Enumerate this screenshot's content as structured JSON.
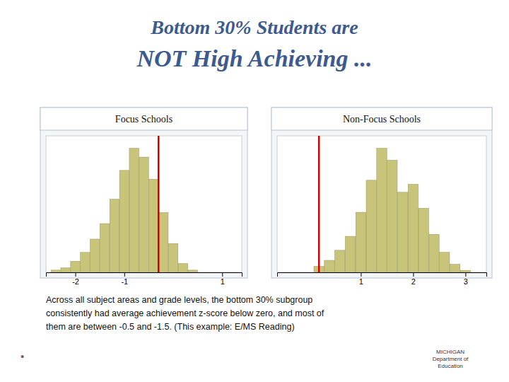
{
  "title": "Bottom 30% Students are\nNOT High Achieving ...",
  "annotations": [
    "Across all subject areas and grade levels, the bottom 30% subgroup\nconsistently had average achievement z-score below zero, and most of\nthem are between -0.5 and -1.5.  (This example:  E/MS Reading)",
    "•",
    "MICHIGAN\nDepartment of\nEducation"
  ],
  "chart_data": [
    {
      "type": "histogram",
      "title": "Focus Schools",
      "bins": [
        -2.5,
        -2.3,
        -2.1,
        -1.9,
        -1.7,
        -1.5,
        -1.3,
        -1.1,
        -0.9,
        -0.7,
        -0.5,
        -0.3,
        -0.1,
        0.1,
        0.3,
        0.5
      ],
      "values": [
        1,
        2,
        5,
        9,
        15,
        22,
        33,
        46,
        56,
        52,
        42,
        27,
        13,
        4,
        1
      ],
      "color": "#c8c47a",
      "xlim": [
        -2.6,
        1.4
      ],
      "xticks": [
        -2,
        -1,
        1
      ],
      "ylim": [
        0,
        61.6
      ],
      "reference_line": {
        "value": -0.3,
        "color": "#cc0000"
      },
      "grid": false,
      "tick_labels": "x"
    },
    {
      "type": "histogram",
      "title": "Non-Focus Schools",
      "bins": [
        0.1,
        0.3,
        0.5,
        0.7,
        0.9,
        1.1,
        1.3,
        1.5,
        1.7,
        1.9,
        2.1,
        2.3,
        2.5,
        2.7,
        2.9,
        3.1
      ],
      "values": [
        3,
        6,
        11,
        18,
        30,
        46,
        62,
        56,
        40,
        44,
        32,
        19,
        10,
        4,
        1
      ],
      "color": "#c8c47a",
      "xlim": [
        -0.6,
        3.4
      ],
      "xticks": [
        1,
        2,
        3
      ],
      "ylim": [
        0,
        68.2
      ],
      "reference_line": {
        "value": 0.2,
        "color": "#cc0000"
      },
      "grid": false,
      "tick_labels": "x"
    }
  ]
}
